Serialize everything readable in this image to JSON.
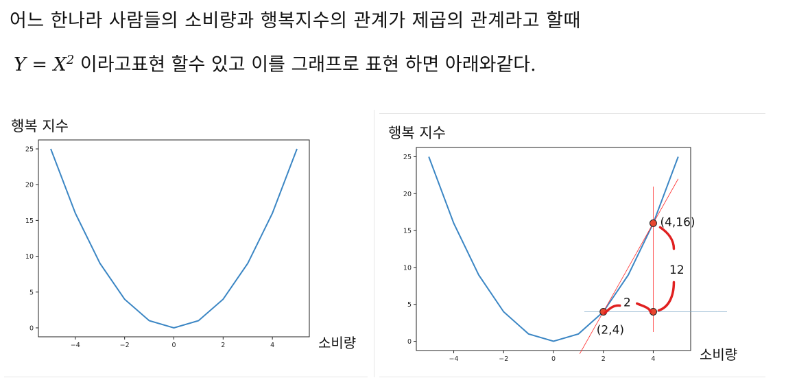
{
  "text": {
    "line1": "어느 한나라 사람들의 소비량과 행복지수의 관계가 제곱의 관계라고 할때",
    "formula_lhs": "Y",
    "formula_eq": " = ",
    "formula_base": "X",
    "formula_exp": "2",
    "line2_rest": " 이라고표현 할수 있고 이를 그래프로 표현 하면 아래와같다."
  },
  "colors": {
    "series": "#3b86c4",
    "tangent": "#ff2a2a",
    "marker_fill": "#e8472f",
    "annotation": "#e02020",
    "guide": "#7fa8c8"
  },
  "chart_data": [
    {
      "type": "line",
      "ylabel": "행복 지수",
      "xlabel": "소비량",
      "x": [
        -5,
        -4,
        -3,
        -2,
        -1,
        0,
        1,
        2,
        3,
        4,
        5
      ],
      "series": [
        {
          "values": [
            25,
            16,
            9,
            4,
            1,
            0,
            1,
            4,
            9,
            16,
            25
          ]
        }
      ],
      "xlim": [
        -5.5,
        5.5
      ],
      "ylim": [
        -1.25,
        26.25
      ],
      "xticks": [
        -4,
        -2,
        0,
        2,
        4
      ],
      "yticks": [
        0,
        5,
        10,
        15,
        20,
        25
      ],
      "grid": false
    },
    {
      "type": "line",
      "ylabel": "행복 지수",
      "xlabel": "소비량",
      "x": [
        -5,
        -4,
        -3,
        -2,
        -1,
        0,
        1,
        2,
        3,
        4,
        5
      ],
      "series": [
        {
          "values": [
            25,
            16,
            9,
            4,
            1,
            0,
            1,
            4,
            9,
            16,
            25
          ]
        }
      ],
      "xlim": [
        -5.5,
        5.5
      ],
      "ylim": [
        -1.25,
        26.25
      ],
      "xticks": [
        -4,
        -2,
        0,
        2,
        4
      ],
      "yticks": [
        0,
        5,
        10,
        15,
        20,
        25
      ],
      "grid": false,
      "points": [
        {
          "x": 2,
          "y": 4,
          "label": "(2,4)"
        },
        {
          "x": 4,
          "y": 16,
          "label": "(4,16)"
        },
        {
          "x": 4,
          "y": 4
        }
      ],
      "annotations": {
        "run": "2",
        "rise": "12"
      }
    }
  ]
}
